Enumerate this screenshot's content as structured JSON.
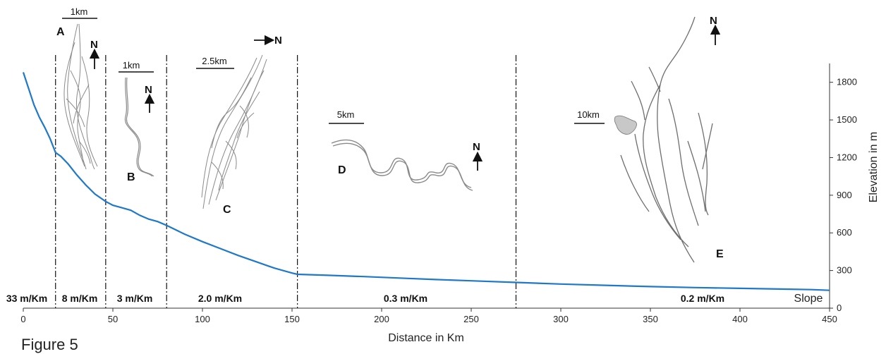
{
  "figure_caption": "Figure 5",
  "chart_data": {
    "type": "line",
    "title": "",
    "xlabel": "Distance in Km",
    "ylabel": "Elevation in m",
    "xlim": [
      0,
      450
    ],
    "ylim": [
      0,
      1950
    ],
    "xticks": [
      0,
      50,
      100,
      150,
      200,
      250,
      300,
      350,
      400,
      450
    ],
    "yticks": [
      0,
      300,
      600,
      900,
      1200,
      1500,
      1800
    ],
    "grid": false,
    "line_color": "#1f78c8",
    "series": [
      {
        "name": "",
        "x": [
          0,
          3,
          6,
          9,
          12,
          15,
          18,
          21,
          25,
          30,
          35,
          40,
          46,
          50,
          55,
          60,
          65,
          70,
          75,
          80,
          90,
          100,
          110,
          120,
          130,
          140,
          150,
          153,
          170,
          190,
          210,
          230,
          250,
          275,
          300,
          325,
          350,
          375,
          400,
          425,
          440,
          450
        ],
        "y": [
          1880,
          1750,
          1620,
          1520,
          1440,
          1350,
          1240,
          1210,
          1150,
          1060,
          980,
          910,
          850,
          820,
          800,
          780,
          740,
          710,
          690,
          660,
          590,
          530,
          475,
          420,
          370,
          320,
          280,
          270,
          262,
          252,
          240,
          228,
          218,
          205,
          192,
          182,
          172,
          164,
          158,
          152,
          148,
          142
        ]
      }
    ],
    "zone_boundaries_km": [
      18,
      46,
      80,
      153,
      275
    ],
    "slopes": [
      "33 m/Km",
      "8 m/Km",
      "3 m/Km",
      "2.0 m/Km",
      "0.3 m/Km",
      "0.2 m/Km"
    ],
    "slope_label": "Slope",
    "insets": [
      {
        "letter": "A",
        "scale": "1km",
        "north": "N"
      },
      {
        "letter": "B",
        "scale": "1km",
        "north": "N"
      },
      {
        "letter": "C",
        "scale": "2.5km",
        "north": "N"
      },
      {
        "letter": "D",
        "scale": "5km",
        "north": "N"
      },
      {
        "letter": "E",
        "scale": "10km",
        "north": "N"
      }
    ]
  }
}
